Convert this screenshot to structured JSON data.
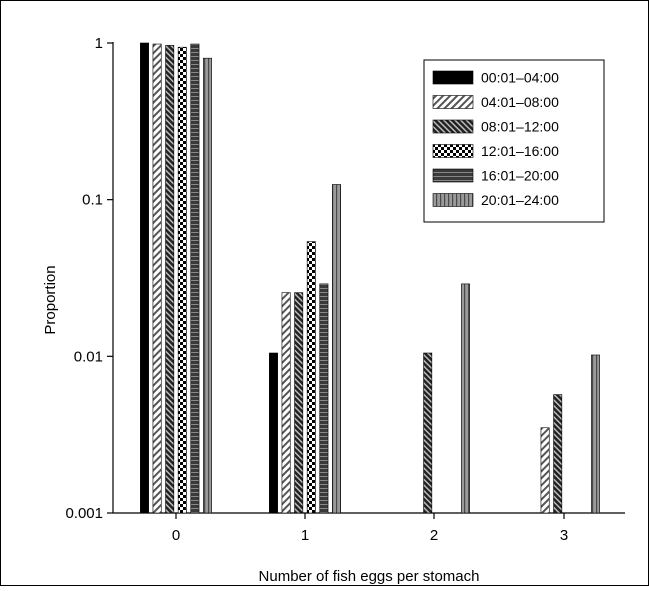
{
  "chart_data": {
    "type": "bar",
    "xlabel": "Number of fish eggs per stomach",
    "ylabel": "Proportion",
    "y_scale": "log",
    "ylim": [
      0.001,
      1
    ],
    "y_ticks": [
      0.001,
      0.01,
      0.1,
      1
    ],
    "y_tick_labels": [
      "0.001",
      "0.01",
      "0.1",
      "1"
    ],
    "categories": [
      "0",
      "1",
      "2",
      "3"
    ],
    "grid": false,
    "legend_position": "top-right",
    "series": [
      {
        "name": "00:01–04:00",
        "pattern": "solid-black",
        "values": [
          1.0,
          0.0105,
          null,
          null
        ]
      },
      {
        "name": "04:01–08:00",
        "pattern": "light-diagonal",
        "values": [
          0.985,
          0.0255,
          null,
          0.0035
        ]
      },
      {
        "name": "08:01–12:00",
        "pattern": "dark-diagonal",
        "values": [
          0.965,
          0.0255,
          0.0105,
          0.0057
        ]
      },
      {
        "name": "12:01–16:00",
        "pattern": "checker",
        "values": [
          0.94,
          0.054,
          null,
          null
        ]
      },
      {
        "name": "16:01–20:00",
        "pattern": "dark-horizontal",
        "values": [
          0.985,
          0.029,
          null,
          null
        ]
      },
      {
        "name": "20:01–24:00",
        "pattern": "vertical-stripes",
        "values": [
          0.8,
          0.125,
          0.029,
          0.0102
        ]
      }
    ]
  }
}
